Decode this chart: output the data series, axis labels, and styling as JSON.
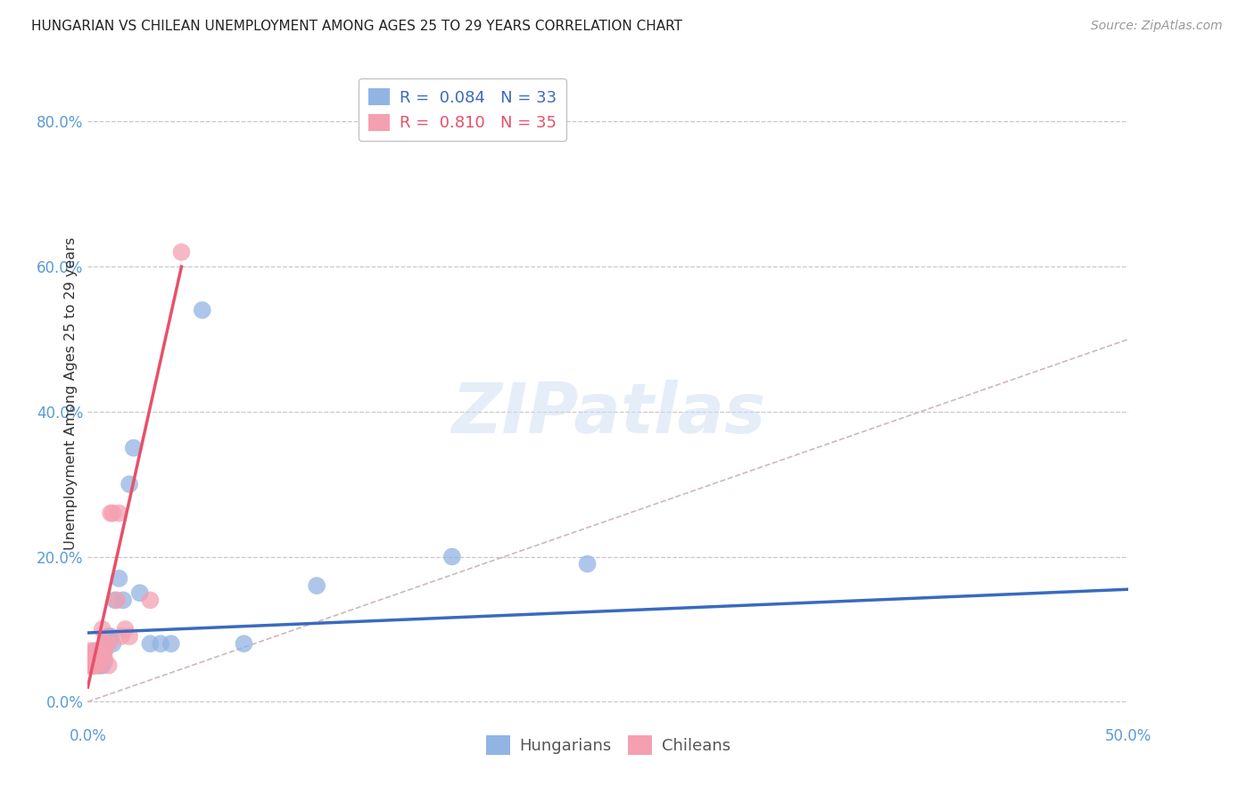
{
  "title": "HUNGARIAN VS CHILEAN UNEMPLOYMENT AMONG AGES 25 TO 29 YEARS CORRELATION CHART",
  "source": "Source: ZipAtlas.com",
  "ylabel": "Unemployment Among Ages 25 to 29 years",
  "xlim": [
    0.0,
    0.5
  ],
  "ylim": [
    -0.03,
    0.88
  ],
  "ytick_labels": [
    "0.0%",
    "20.0%",
    "40.0%",
    "60.0%",
    "80.0%"
  ],
  "ytick_vals": [
    0.0,
    0.2,
    0.4,
    0.6,
    0.8
  ],
  "xtick_vals": [
    0.0,
    0.1,
    0.2,
    0.3,
    0.4,
    0.5
  ],
  "blue_color": "#92b4e3",
  "pink_color": "#f4a0b0",
  "blue_line_color": "#3a6abf",
  "pink_line_color": "#e8506a",
  "axis_color": "#5b9bd5",
  "background_color": "#ffffff",
  "grid_color": "#c8c8c8",
  "hun_R": "0.084",
  "hun_N": "33",
  "chi_R": "0.810",
  "chi_N": "35",
  "hungarian_x": [
    0.001,
    0.001,
    0.002,
    0.002,
    0.003,
    0.003,
    0.003,
    0.005,
    0.005,
    0.006,
    0.006,
    0.007,
    0.007,
    0.008,
    0.008,
    0.009,
    0.01,
    0.011,
    0.012,
    0.013,
    0.015,
    0.017,
    0.02,
    0.022,
    0.025,
    0.03,
    0.035,
    0.04,
    0.055,
    0.075,
    0.11,
    0.175,
    0.24
  ],
  "hungarian_y": [
    0.05,
    0.06,
    0.05,
    0.06,
    0.05,
    0.06,
    0.07,
    0.05,
    0.06,
    0.05,
    0.06,
    0.05,
    0.06,
    0.055,
    0.07,
    0.08,
    0.09,
    0.09,
    0.08,
    0.14,
    0.17,
    0.14,
    0.3,
    0.35,
    0.15,
    0.08,
    0.08,
    0.08,
    0.54,
    0.08,
    0.16,
    0.2,
    0.19
  ],
  "chilean_x": [
    0.0,
    0.0,
    0.001,
    0.001,
    0.001,
    0.001,
    0.002,
    0.002,
    0.002,
    0.003,
    0.003,
    0.003,
    0.004,
    0.004,
    0.004,
    0.005,
    0.005,
    0.005,
    0.006,
    0.007,
    0.007,
    0.008,
    0.008,
    0.009,
    0.01,
    0.01,
    0.011,
    0.012,
    0.014,
    0.015,
    0.016,
    0.018,
    0.02,
    0.03,
    0.045
  ],
  "chilean_y": [
    0.05,
    0.06,
    0.05,
    0.05,
    0.06,
    0.07,
    0.05,
    0.05,
    0.06,
    0.05,
    0.05,
    0.06,
    0.05,
    0.06,
    0.07,
    0.05,
    0.06,
    0.07,
    0.06,
    0.06,
    0.1,
    0.06,
    0.07,
    0.08,
    0.05,
    0.08,
    0.26,
    0.26,
    0.14,
    0.26,
    0.09,
    0.1,
    0.09,
    0.14,
    0.62
  ],
  "blue_trend_x": [
    0.0,
    0.5
  ],
  "blue_trend_y": [
    0.095,
    0.155
  ],
  "pink_trend_x": [
    0.0,
    0.045
  ],
  "pink_trend_y": [
    0.02,
    0.6
  ]
}
